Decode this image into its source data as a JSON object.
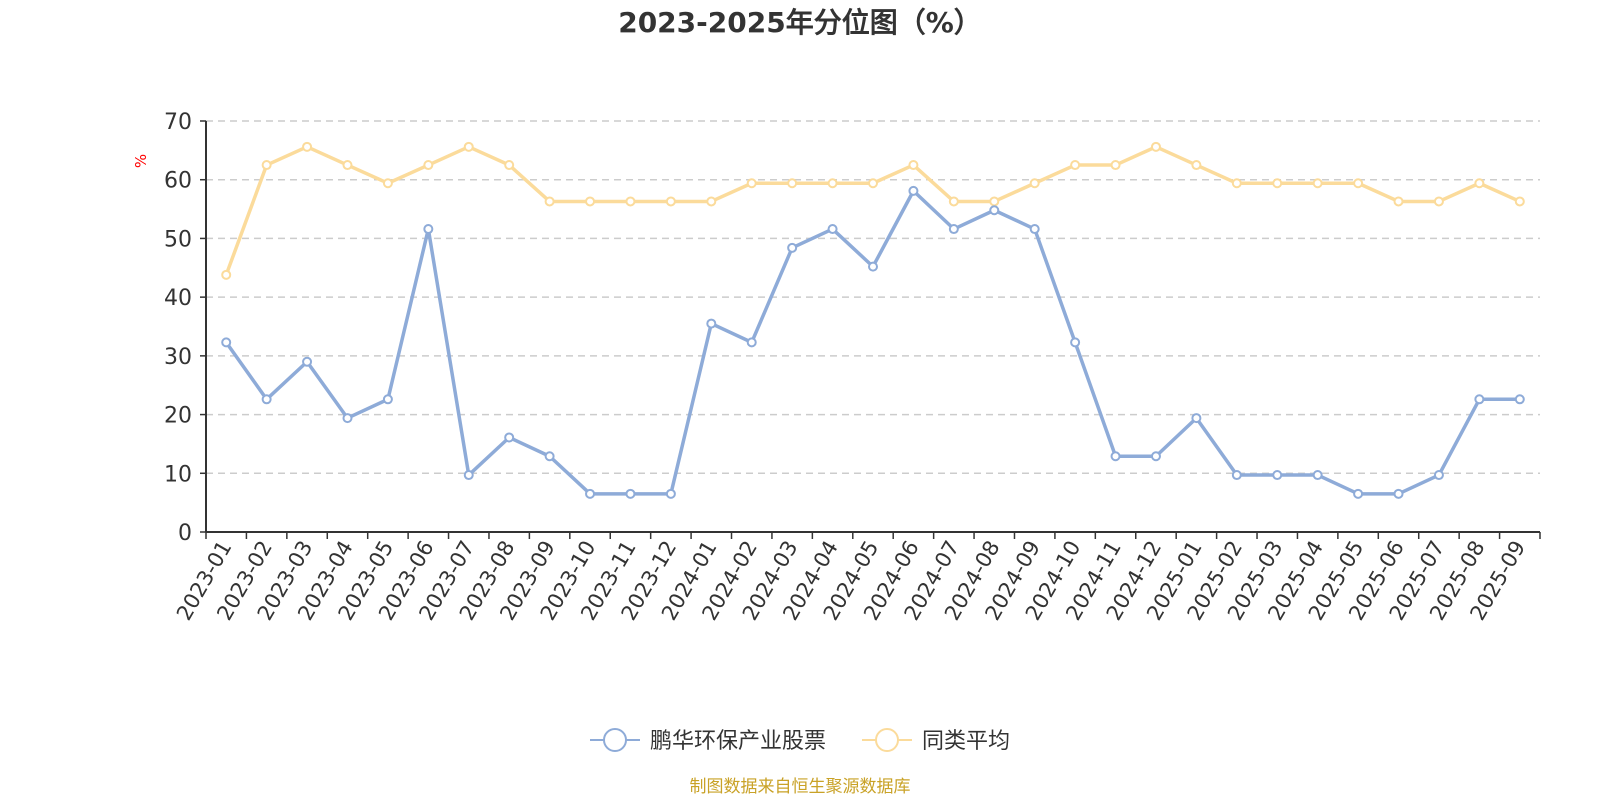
{
  "chart_data": {
    "type": "line",
    "title": "2023-2025年分位图（%）",
    "ylabel": "%",
    "xlabel": "",
    "ylim": [
      0,
      70
    ],
    "yticks": [
      0,
      10,
      20,
      30,
      40,
      50,
      60,
      70
    ],
    "grid": true,
    "legend_position": "bottom-center",
    "categories": [
      "2023-01",
      "2023-02",
      "2023-03",
      "2023-04",
      "2023-05",
      "2023-06",
      "2023-07",
      "2023-08",
      "2023-09",
      "2023-10",
      "2023-11",
      "2023-12",
      "2024-01",
      "2024-02",
      "2024-03",
      "2024-04",
      "2024-05",
      "2024-06",
      "2024-07",
      "2024-08",
      "2024-09",
      "2024-10",
      "2024-11",
      "2024-12",
      "2025-01",
      "2025-02",
      "2025-03",
      "2025-04",
      "2025-05",
      "2025-06",
      "2025-07",
      "2025-08",
      "2025-09"
    ],
    "series": [
      {
        "name": "鹏华环保产业股票",
        "color": "#8eabd8",
        "values": [
          32.3,
          22.6,
          29.0,
          19.4,
          22.6,
          51.6,
          9.7,
          16.1,
          12.9,
          6.5,
          6.5,
          6.5,
          35.5,
          32.3,
          48.4,
          51.6,
          45.2,
          58.1,
          51.6,
          54.8,
          51.6,
          32.3,
          12.9,
          12.9,
          19.4,
          9.7,
          9.7,
          9.7,
          6.5,
          6.5,
          9.7,
          22.6,
          22.6
        ]
      },
      {
        "name": "同类平均",
        "color": "#fbdb9b",
        "values": [
          43.8,
          62.5,
          65.6,
          62.5,
          59.4,
          62.5,
          65.6,
          62.5,
          56.3,
          56.3,
          56.3,
          56.3,
          56.3,
          59.4,
          59.4,
          59.4,
          59.4,
          62.5,
          56.3,
          56.3,
          59.4,
          62.5,
          62.5,
          65.6,
          62.5,
          59.4,
          59.4,
          59.4,
          59.4,
          56.3,
          56.3,
          59.4,
          56.3
        ]
      }
    ]
  },
  "source_note": "制图数据来自恒生聚源数据库"
}
